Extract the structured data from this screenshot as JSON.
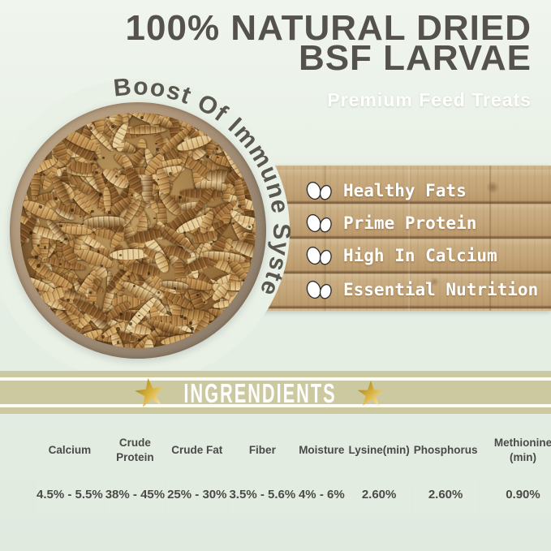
{
  "header": {
    "title_line1": "100% NATURAL DRIED",
    "title_line2": "BSF LARVAE",
    "subtitle": "Premium Feed Treats"
  },
  "hero": {
    "arc_text": "Boost Of Immune System",
    "features": [
      {
        "icon": "double-eggs-icon",
        "label": "Healthy Fats"
      },
      {
        "icon": "double-eggs-icon",
        "label": "Prime Protein"
      },
      {
        "icon": "double-eggs-icon",
        "label": "High In Calcium"
      },
      {
        "icon": "double-eggs-icon",
        "label": "Essential Nutrition"
      }
    ]
  },
  "banner": {
    "label": "INGRENDIENTS",
    "left_icon": "gold-star-icon",
    "right_icon": "gold-star-icon"
  },
  "nutrition_table": {
    "columns": [
      "Calcium",
      "Crude Protein",
      "Crude Fat",
      "Fiber",
      "Moisture",
      "Lysine(min)",
      "Phosphorus",
      "Methionine (min)"
    ],
    "values": [
      "4.5% - 5.5%",
      "38% - 45%",
      "25% - 30%",
      "3.5% - 5.6%",
      "4% - 6%",
      "2.60%",
      "2.60%",
      "0.90%"
    ]
  },
  "colors": {
    "title_text": "#55524e",
    "arc_text": "#5a574f",
    "subtitle_text": "#ffffff",
    "banner_bg": "#ccc8a0",
    "banner_text": "#ffffff",
    "star_gold": "#c79b1d",
    "wood_plank": "#c5a87e",
    "table_cell_bg": "#e3ece1",
    "table_text": "#4a4a48",
    "page_bg_top": "#f0f5ed",
    "page_bg_bottom": "#e0eadf",
    "larvae_palette": [
      "#e8cf9a",
      "#d9b272",
      "#c99c58",
      "#b9884a",
      "#a5743a",
      "#8d5f2c",
      "#754b20"
    ]
  }
}
